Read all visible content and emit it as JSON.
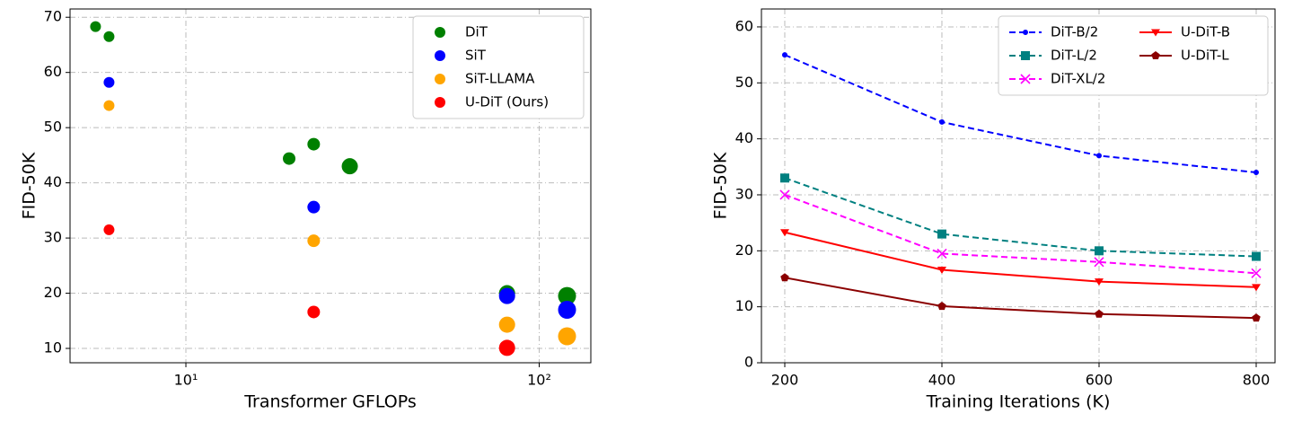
{
  "chart_data": [
    {
      "type": "scatter",
      "xlabel": "Transformer GFLOPs",
      "ylabel": "FID-50K",
      "xscale": "log",
      "xlim": [
        4.7,
        140
      ],
      "ylim": [
        7.4,
        71.5
      ],
      "xticks": [
        {
          "value": 10,
          "label": "10¹"
        },
        {
          "value": 100,
          "label": "10²"
        }
      ],
      "yticks": [
        10,
        20,
        30,
        40,
        50,
        60,
        70
      ],
      "grid": true,
      "legend": "upper right",
      "legend_columns": 1,
      "series": [
        {
          "name": "DiT",
          "color": "#008000",
          "x": [
            5.55,
            6.06,
            19.6,
            23.0,
            29.1,
            81.1,
            119.9
          ],
          "values": [
            68.3,
            66.5,
            44.4,
            47,
            43,
            20,
            19.5
          ],
          "sizes": [
            6,
            6,
            7,
            7,
            9,
            9,
            10
          ]
        },
        {
          "name": "SiT",
          "color": "#0000ff",
          "x": [
            6.06,
            23.0,
            81.1,
            119.9
          ],
          "values": [
            58.2,
            35.6,
            19.5,
            17
          ],
          "sizes": [
            6,
            7,
            9,
            10
          ]
        },
        {
          "name": "SiT-LLAMA",
          "color": "#ffa500",
          "x": [
            6.06,
            23.0,
            81.1,
            119.9
          ],
          "values": [
            54,
            29.5,
            14.3,
            12.2
          ],
          "sizes": [
            6,
            7,
            9,
            10
          ]
        },
        {
          "name": "U-DiT (Ours)",
          "color": "#ff0000",
          "x": [
            6.06,
            23.0,
            81.1
          ],
          "values": [
            31.5,
            16.6,
            10.1
          ],
          "sizes": [
            6,
            7,
            9
          ]
        }
      ]
    },
    {
      "type": "line",
      "xlabel": "Training Iterations (K)",
      "ylabel": "FID-50K",
      "x": [
        200,
        400,
        600,
        800
      ],
      "xlim": [
        170.3,
        824
      ],
      "ylim": [
        0,
        63.2
      ],
      "xticks": [
        200,
        400,
        600,
        800
      ],
      "yticks": [
        0,
        10,
        20,
        30,
        40,
        50,
        60
      ],
      "grid": true,
      "legend": "upper right",
      "legend_columns": 2,
      "series": [
        {
          "name": "DiT-B/2",
          "color": "#0000ff",
          "linestyle": "dashed",
          "marker": "o",
          "values": [
            55,
            43,
            37,
            34
          ]
        },
        {
          "name": "DiT-L/2",
          "color": "#008080",
          "linestyle": "dashed",
          "marker": "s",
          "values": [
            33,
            23,
            20,
            19
          ]
        },
        {
          "name": "DiT-XL/2",
          "color": "#ff00ff",
          "linestyle": "dashed",
          "marker": "x",
          "values": [
            30,
            19.5,
            18,
            16
          ]
        },
        {
          "name": "U-DiT-B",
          "color": "#ff0000",
          "linestyle": "solid",
          "marker": "v",
          "values": [
            23.3,
            16.6,
            14.5,
            13.5
          ]
        },
        {
          "name": "U-DiT-L",
          "color": "#8b0000",
          "linestyle": "solid",
          "marker": "p",
          "values": [
            15.2,
            10.1,
            8.7,
            8.0
          ]
        }
      ]
    }
  ]
}
